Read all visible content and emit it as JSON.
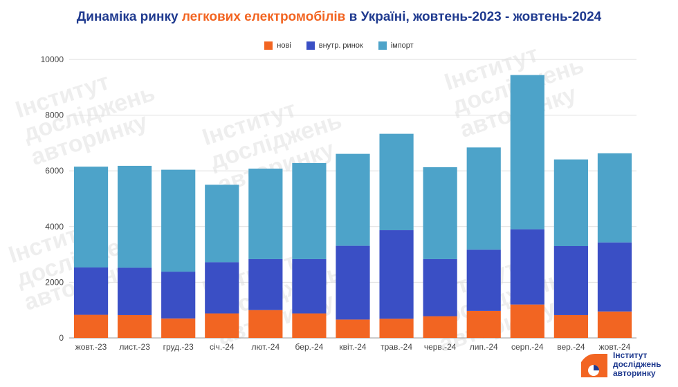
{
  "title": {
    "before": "Динаміка ринку ",
    "highlight": "легкових електромобілів",
    "after": " в Україні, жовтень-2023 - жовтень-2024"
  },
  "logo": {
    "line1": "Інститут",
    "line2": "досліджень",
    "line3": "авторинку"
  },
  "colors": {
    "new": "#f26522",
    "domestic": "#3a4fc5",
    "import": "#4da3c9",
    "title": "#1f3a8f"
  },
  "chart_data": {
    "type": "bar",
    "stacked": true,
    "categories": [
      "жовт.-23",
      "лист.-23",
      "груд.-23",
      "січ.-24",
      "лют.-24",
      "бер.-24",
      "квіт.-24",
      "трав.-24",
      "черв.-24",
      "лип.-24",
      "серп.-24",
      "вер.-24",
      "жовт.-24"
    ],
    "series": [
      {
        "name": "нові",
        "color": "#f26522",
        "values": [
          830,
          820,
          700,
          880,
          1000,
          880,
          660,
          690,
          780,
          970,
          1200,
          820,
          950
        ]
      },
      {
        "name": "внутр. ринок",
        "color": "#3a4fc5",
        "values": [
          1700,
          1700,
          1680,
          1840,
          1830,
          1950,
          2650,
          3180,
          2050,
          2200,
          2700,
          2480,
          2480
        ]
      },
      {
        "name": "імпорт",
        "color": "#4da3c9",
        "values": [
          3620,
          3660,
          3660,
          2780,
          3250,
          3450,
          3300,
          3460,
          3300,
          3670,
          5540,
          3110,
          3200
        ]
      }
    ],
    "ylim": [
      0,
      10000
    ],
    "yticks": [
      0,
      2000,
      4000,
      6000,
      8000,
      10000
    ],
    "grid": true,
    "legend_position": "top"
  }
}
